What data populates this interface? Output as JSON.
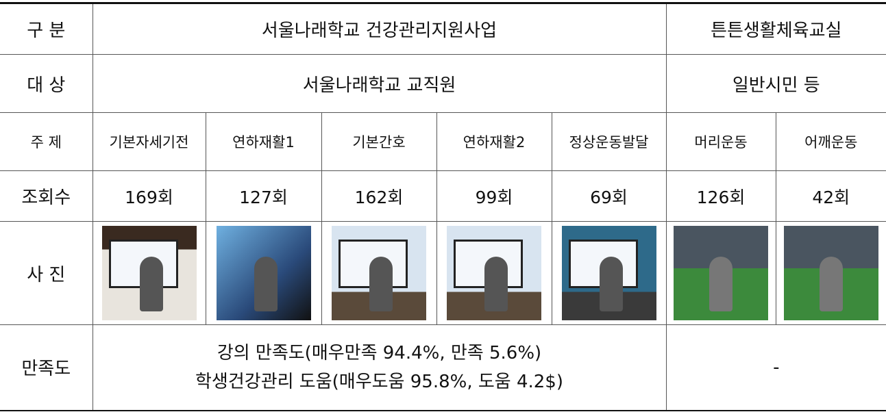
{
  "table": {
    "header": {
      "label": "구 분",
      "group1": "서울나래학교 건강관리지원사업",
      "group2": "튼튼생활체육교실"
    },
    "target": {
      "label": "대 상",
      "group1": "서울나래학교 교직원",
      "group2": "일반시민 등"
    },
    "topics": {
      "label": "주 제",
      "items": [
        "기본자세기전",
        "연하재활1",
        "기본간호",
        "연하재활2",
        "정상운동발달",
        "머리운동",
        "어깨운동"
      ]
    },
    "views": {
      "label": "조회수",
      "items": [
        "169회",
        "127회",
        "162회",
        "99회",
        "69회",
        "126회",
        "42회"
      ]
    },
    "photos": {
      "label": "사 진"
    },
    "satisfaction": {
      "label": "만족도",
      "lines": [
        "강의 만족도(매우만족 94.4%, 만족 5.6%)",
        "학생건강관리 도움(매우도움 95.8%, 도움 4.2$)"
      ],
      "group2": "-"
    }
  }
}
